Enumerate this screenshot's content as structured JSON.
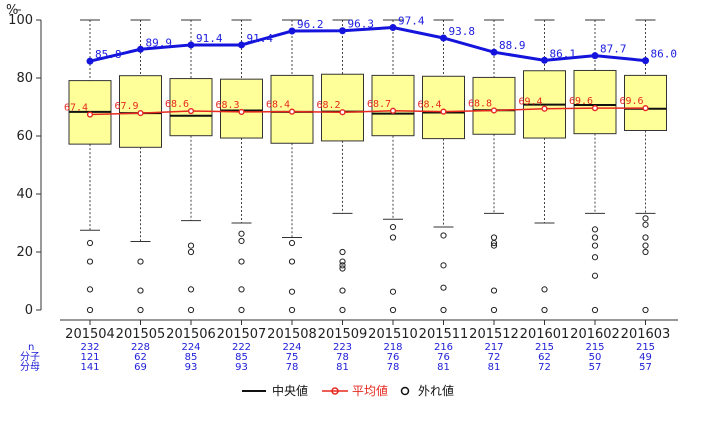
{
  "chart_data": {
    "type": "boxplot",
    "ylabel": "%",
    "ylim": [
      0,
      100
    ],
    "yticks": [
      0,
      20,
      40,
      60,
      80,
      100
    ],
    "categories": [
      "201504",
      "201505",
      "201506",
      "201507",
      "201508",
      "201509",
      "201510",
      "201511",
      "201512",
      "201601",
      "201602",
      "201603"
    ],
    "boxes": [
      {
        "q1": 57.2,
        "median": 68.3,
        "q3": 79.1,
        "whisker_low": 27.5,
        "whisker_high": 100,
        "outliers": [
          23.1,
          16.7,
          7.1,
          0
        ]
      },
      {
        "q1": 56.1,
        "median": 67.9,
        "q3": 80.8,
        "whisker_low": 23.6,
        "whisker_high": 100,
        "outliers": [
          16.7,
          6.7,
          0
        ]
      },
      {
        "q1": 60.1,
        "median": 67.0,
        "q3": 79.8,
        "whisker_low": 30.8,
        "whisker_high": 100,
        "outliers": [
          22.2,
          20.0,
          7.1,
          0
        ]
      },
      {
        "q1": 59.3,
        "median": 68.8,
        "q3": 79.6,
        "whisker_low": 30.0,
        "whisker_high": 100,
        "outliers": [
          26.3,
          23.8,
          16.7,
          7.1,
          0
        ]
      },
      {
        "q1": 57.5,
        "median": 68.3,
        "q3": 80.9,
        "whisker_low": 25.0,
        "whisker_high": 100,
        "outliers": [
          23.1,
          16.7,
          6.3,
          0
        ]
      },
      {
        "q1": 58.3,
        "median": 68.4,
        "q3": 81.3,
        "whisker_low": 33.3,
        "whisker_high": 100,
        "outliers": [
          20.0,
          16.7,
          15.4,
          14.3,
          6.7,
          0
        ]
      },
      {
        "q1": 60.1,
        "median": 67.7,
        "q3": 80.9,
        "whisker_low": 31.3,
        "whisker_high": 100,
        "outliers": [
          28.6,
          25.0,
          6.3,
          0
        ]
      },
      {
        "q1": 59.1,
        "median": 68.1,
        "q3": 80.6,
        "whisker_low": 28.6,
        "whisker_high": 100,
        "outliers": [
          25.7,
          15.4,
          7.7,
          0
        ]
      },
      {
        "q1": 60.6,
        "median": 68.9,
        "q3": 80.2,
        "whisker_low": 33.3,
        "whisker_high": 100,
        "outliers": [
          25.0,
          23.1,
          22.2,
          6.7,
          0
        ]
      },
      {
        "q1": 59.3,
        "median": 70.8,
        "q3": 82.5,
        "whisker_low": 30.0,
        "whisker_high": 100,
        "outliers": [
          7.1,
          0
        ]
      },
      {
        "q1": 60.8,
        "median": 70.7,
        "q3": 82.6,
        "whisker_low": 33.3,
        "whisker_high": 100,
        "outliers": [
          27.8,
          25.0,
          22.2,
          18.2,
          11.8,
          0
        ]
      },
      {
        "q1": 61.9,
        "median": 69.4,
        "q3": 80.9,
        "whisker_low": 33.3,
        "whisker_high": 100,
        "outliers": [
          31.6,
          29.4,
          25.0,
          22.2,
          20.0,
          0
        ]
      }
    ],
    "series": [
      {
        "name": "平均値",
        "values": [
          67.4,
          67.9,
          68.6,
          68.3,
          68.4,
          68.2,
          68.7,
          68.4,
          68.8,
          69.4,
          69.6,
          69.6
        ],
        "labels": [
          "67.4",
          "67.9",
          "68.6",
          "68.3",
          "68.4",
          "68.2",
          "68.7",
          "68.4",
          "68.8",
          "69.4",
          "69.6",
          "69.6"
        ]
      },
      {
        "values": [
          85.8,
          89.9,
          91.4,
          91.4,
          96.2,
          96.3,
          97.4,
          93.8,
          88.9,
          86.1,
          87.7,
          86.0
        ],
        "labels": [
          "85.8",
          "89.9",
          "91.4",
          "91.4",
          "96.2",
          "96.3",
          "97.4",
          "93.8",
          "88.9",
          "86.1",
          "87.7",
          "86.0"
        ]
      }
    ],
    "table": {
      "row_labels": [
        "n",
        "分子",
        "分母"
      ],
      "n": [
        "232",
        "228",
        "224",
        "222",
        "224",
        "223",
        "218",
        "216",
        "217",
        "215",
        "215",
        "215"
      ],
      "num": [
        "121",
        "62",
        "85",
        "85",
        "75",
        "78",
        "76",
        "76",
        "72",
        "62",
        "50",
        "49"
      ],
      "den": [
        "141",
        "69",
        "93",
        "93",
        "78",
        "81",
        "78",
        "81",
        "81",
        "72",
        "57",
        "57"
      ]
    },
    "legend": [
      "中央値",
      "平均値",
      "外れ値"
    ],
    "colors": {
      "box_fill": "#ffff99",
      "box_stroke": "#333333",
      "median": "#111111",
      "mean": "#e6281e",
      "blue_line": "#1414dc",
      "counts": "#2020d8"
    }
  }
}
